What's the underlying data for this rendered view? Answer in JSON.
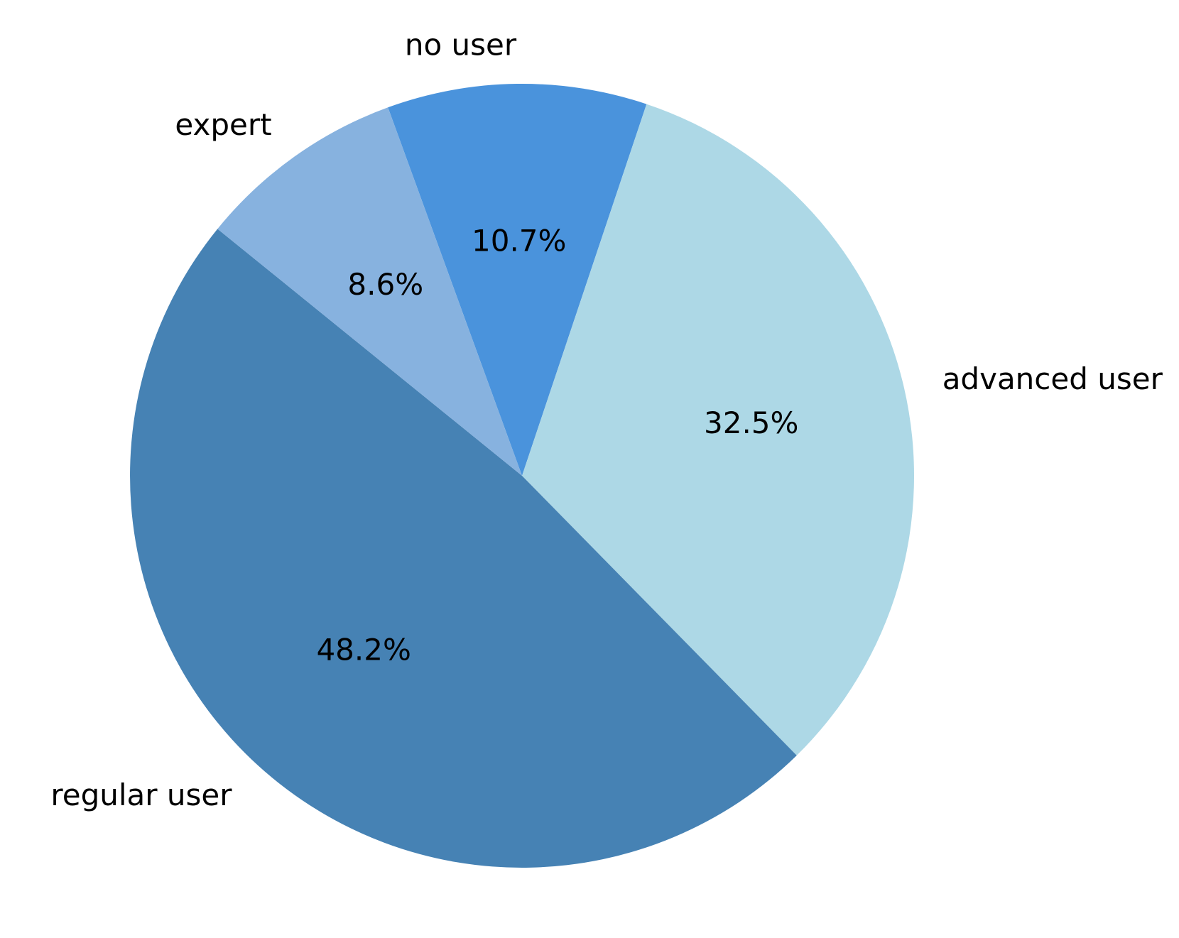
{
  "chart_data": {
    "type": "pie",
    "categories": [
      "no user",
      "advanced user",
      "regular user",
      "expert"
    ],
    "values": [
      10.7,
      32.5,
      48.2,
      8.6
    ],
    "value_labels": [
      "10.7%",
      "32.5%",
      "48.2%",
      "8.6%"
    ],
    "colors": [
      "#4a93dc",
      "#add8e6",
      "#4682b4",
      "#87b2df"
    ],
    "direction": "clockwise",
    "legend": "none"
  }
}
